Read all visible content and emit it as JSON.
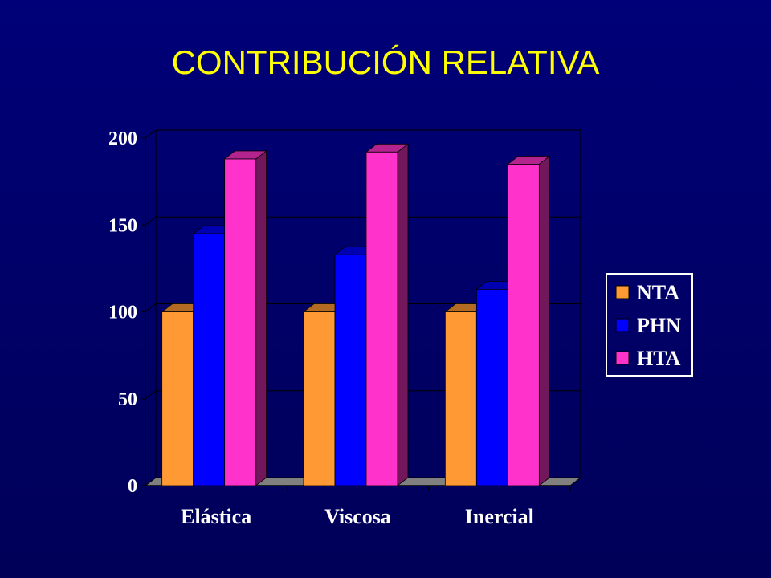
{
  "chart_data": {
    "type": "bar3d",
    "title": "CONTRIBUCIÓN RELATIVA",
    "categories": [
      "Elástica",
      "Viscosa",
      "Inercial"
    ],
    "series": [
      {
        "name": "NTA",
        "color": "#ff9933",
        "values": [
          100,
          100,
          100
        ]
      },
      {
        "name": "PHN",
        "color": "#0000ff",
        "values": [
          145,
          133,
          113
        ]
      },
      {
        "name": "HTA",
        "color": "#ff33cc",
        "values": [
          188,
          192,
          185
        ]
      }
    ],
    "ylim": [
      0,
      200
    ],
    "yticks": [
      0,
      50,
      100,
      150,
      200
    ],
    "grid": true,
    "legend": "right"
  }
}
